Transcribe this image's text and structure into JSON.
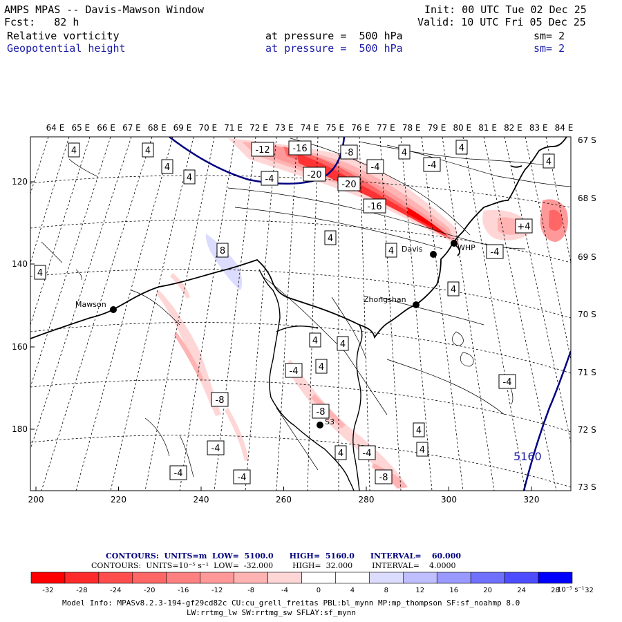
{
  "header": {
    "title": "AMPS MPAS -- Davis-Mawson Window",
    "init": "Init: 00 UTC Tue 02 Dec 25",
    "fcst": "Fcst:   82 h",
    "valid": "Valid: 10 UTC Fri 05 Dec 25",
    "field1": {
      "name": "Relative vorticity",
      "level": "at pressure =  500 hPa",
      "smooth": "sm= 2"
    },
    "field2": {
      "name": "Geopotential height",
      "level": "at pressure =  500 hPa",
      "smooth": "sm= 2"
    }
  },
  "axes": {
    "top_ticks": [
      "64 E",
      "65 E",
      "66 E",
      "67 E",
      "68 E",
      "69 E",
      "70 E",
      "71 E",
      "72 E",
      "73 E",
      "74 E",
      "75 E",
      "76 E",
      "77 E",
      "78 E",
      "79 E",
      "80 E",
      "81 E",
      "82 E",
      "83 E",
      "84 E"
    ],
    "right_ticks": [
      "67 S",
      "68 S",
      "69 S",
      "70 S",
      "71 S",
      "72 S",
      "73 S"
    ],
    "left_ticks": [
      "120",
      "140",
      "160",
      "180"
    ],
    "bottom_ticks": [
      "200",
      "220",
      "240",
      "260",
      "280",
      "300",
      "320"
    ]
  },
  "stations": [
    {
      "name": "Mawson"
    },
    {
      "name": "Davis"
    },
    {
      "name": "Zhongshan"
    },
    {
      "name": "WHP"
    },
    {
      "name": "S3"
    }
  ],
  "contour_labels": {
    "vorticity": [
      "4",
      "4",
      "4",
      "4",
      "-12",
      "-16",
      "-8",
      "4",
      "-4",
      "-4",
      "4",
      "4",
      "-20",
      "-20",
      "-4",
      "-16",
      "4",
      "4",
      "+4",
      "8",
      "4",
      "-4",
      "-4",
      "4",
      "4",
      "4",
      "4",
      "-4",
      "4",
      "4",
      "-8",
      "-8",
      "4",
      "-4",
      "-4",
      "-4",
      "-8",
      "-4"
    ],
    "height": [
      "5160"
    ]
  },
  "contour_info": {
    "height": {
      "label": "CONTOURS:  UNITS=m  LOW=  5100.0      HIGH=  5160.0      INTERVAL=    60.000"
    },
    "vorticity": {
      "label": "CONTOURS:  UNITS=10⁻⁵ s⁻¹  LOW=  -32.000        HIGH=  32.000        INTERVAL=    4.0000"
    }
  },
  "colorbar": {
    "ticks": [
      "-32",
      "-28",
      "-24",
      "-20",
      "-16",
      "-12",
      "-8",
      "-4",
      "0",
      "4",
      "8",
      "12",
      "16",
      "20",
      "24",
      "28",
      "32"
    ],
    "unit": "10⁻⁵ s⁻¹",
    "colors": [
      "#ff0000",
      "#ff2b2b",
      "#ff4d4d",
      "#ff6666",
      "#ff8080",
      "#ff9999",
      "#ffb3b3",
      "#ffd6d6",
      "#ffffff",
      "#ffffff",
      "#dcdcff",
      "#bfbfff",
      "#9999ff",
      "#7070ff",
      "#4d4dff",
      "#2b2bff",
      "#0000ff"
    ]
  },
  "model_info": {
    "line1": "Model Info: MPASv8.2.3-194-gf29cd82c CU:cu_grell_freitas PBL:bl_mynn MP:mp_thompson SF:sf_noahmp 8.0",
    "line2": "LW:rrtmg_lw SW:rrtmg_sw SFLAY:sf_mynn"
  }
}
